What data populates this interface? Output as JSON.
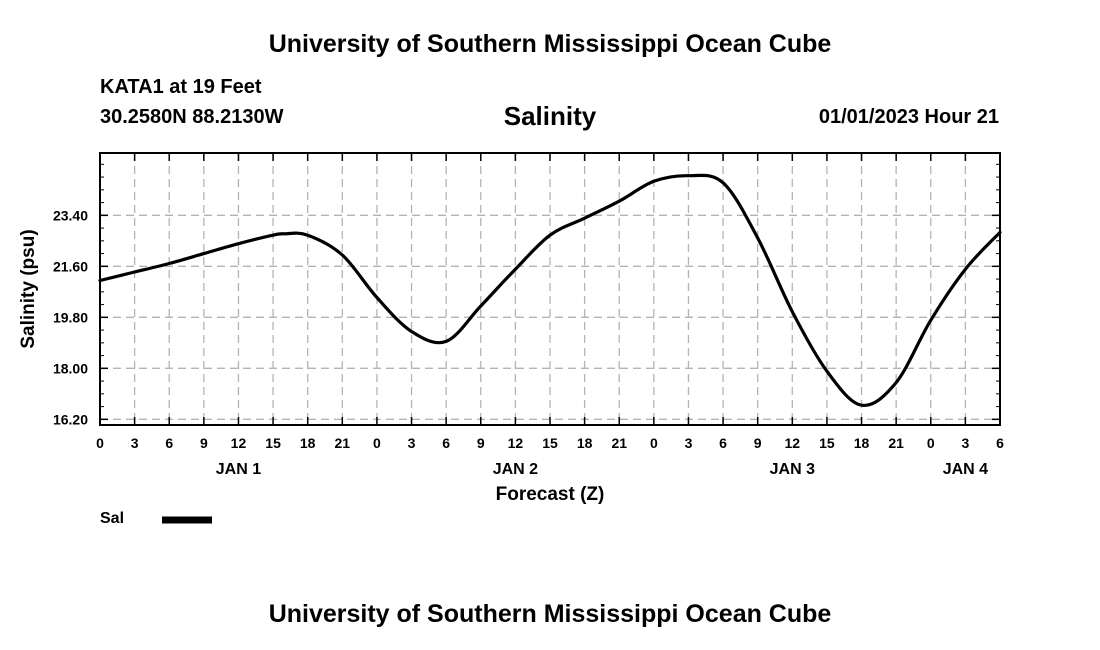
{
  "header": {
    "title_top": "University of Southern Mississippi Ocean Cube",
    "station": "KATA1 at 19 Feet",
    "coords": "30.2580N  88.2130W",
    "variable": "Salinity",
    "datetime": "01/01/2023 Hour 21"
  },
  "footer": {
    "title_bottom": "University of Southern Mississippi Ocean Cube"
  },
  "legend": {
    "label": "Sal",
    "color": "#000000"
  },
  "chart_data": {
    "type": "line",
    "title": "Salinity",
    "xlabel": "Forecast (Z)",
    "ylabel": "Salinity (psu)",
    "xlim": [
      0,
      78
    ],
    "ylim": [
      16.0,
      25.6
    ],
    "x_ticks": [
      0,
      3,
      6,
      9,
      12,
      15,
      18,
      21,
      24,
      27,
      30,
      33,
      36,
      39,
      42,
      45,
      48,
      51,
      54,
      57,
      60,
      63,
      66,
      69,
      72,
      75,
      78
    ],
    "x_tick_labels": [
      "0",
      "3",
      "6",
      "9",
      "12",
      "15",
      "18",
      "21",
      "0",
      "3",
      "6",
      "9",
      "12",
      "15",
      "18",
      "21",
      "0",
      "3",
      "6",
      "9",
      "12",
      "15",
      "18",
      "21",
      "0",
      "3",
      "6"
    ],
    "y_ticks": [
      16.2,
      18.0,
      19.8,
      21.6,
      23.4
    ],
    "y_tick_labels": [
      "16.20",
      "18.00",
      "19.80",
      "21.60",
      "23.40"
    ],
    "day_labels": [
      {
        "x": 12,
        "label": "JAN 1"
      },
      {
        "x": 36,
        "label": "JAN 2"
      },
      {
        "x": 60,
        "label": "JAN 3"
      },
      {
        "x": 75,
        "label": "JAN 4"
      }
    ],
    "grid": true,
    "series": [
      {
        "name": "Sal",
        "x": [
          0,
          3,
          6,
          9,
          12,
          15,
          16,
          18,
          21,
          24,
          27,
          30,
          33,
          36,
          39,
          42,
          45,
          48,
          51,
          54,
          57,
          60,
          63,
          66,
          69,
          72,
          75,
          78
        ],
        "values": [
          21.1,
          21.4,
          21.7,
          22.05,
          22.4,
          22.7,
          22.75,
          22.7,
          22.0,
          20.5,
          19.3,
          18.95,
          20.2,
          21.5,
          22.7,
          23.3,
          23.9,
          24.6,
          24.8,
          24.55,
          22.6,
          20.0,
          17.9,
          16.7,
          17.5,
          19.7,
          21.5,
          22.8
        ]
      }
    ]
  }
}
